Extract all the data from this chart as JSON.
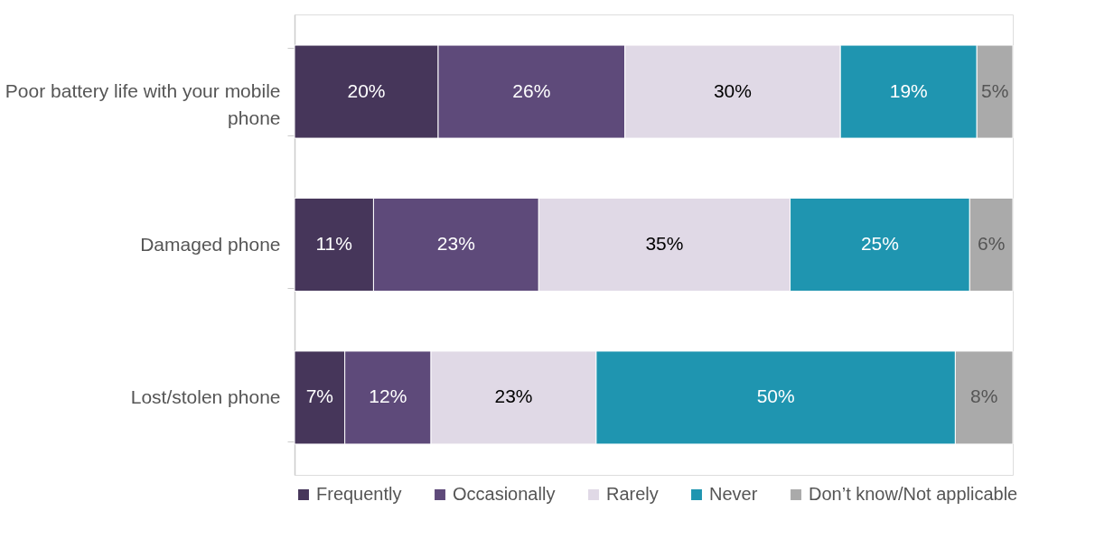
{
  "chart_data": {
    "type": "bar",
    "orientation": "horizontal",
    "stacked": true,
    "legend": "bottom",
    "categories": [
      "Poor battery life with your mobile phone",
      "Damaged phone",
      "Lost/stolen phone"
    ],
    "series": [
      {
        "name": "Frequently",
        "color": "#46365a",
        "values": [
          20,
          11,
          7
        ],
        "value_labels": [
          "20%",
          "11%",
          "7%"
        ]
      },
      {
        "name": "Occasionally",
        "color": "#5e4a7a",
        "values": [
          26,
          23,
          12
        ],
        "value_labels": [
          "26%",
          "23%",
          "12%"
        ]
      },
      {
        "name": "Rarely",
        "color": "#e0d9e6",
        "values": [
          30,
          35,
          23
        ],
        "value_labels": [
          "30%",
          "35%",
          "23%"
        ]
      },
      {
        "name": "Never",
        "color": "#1f95b0",
        "values": [
          19,
          25,
          50
        ],
        "value_labels": [
          "19%",
          "25%",
          "50%"
        ]
      },
      {
        "name": "Don’t know/Not applicable",
        "color": "#aaaaaa",
        "values": [
          5,
          6,
          8
        ],
        "value_labels": [
          "5%",
          "6%",
          "8%"
        ]
      }
    ]
  }
}
